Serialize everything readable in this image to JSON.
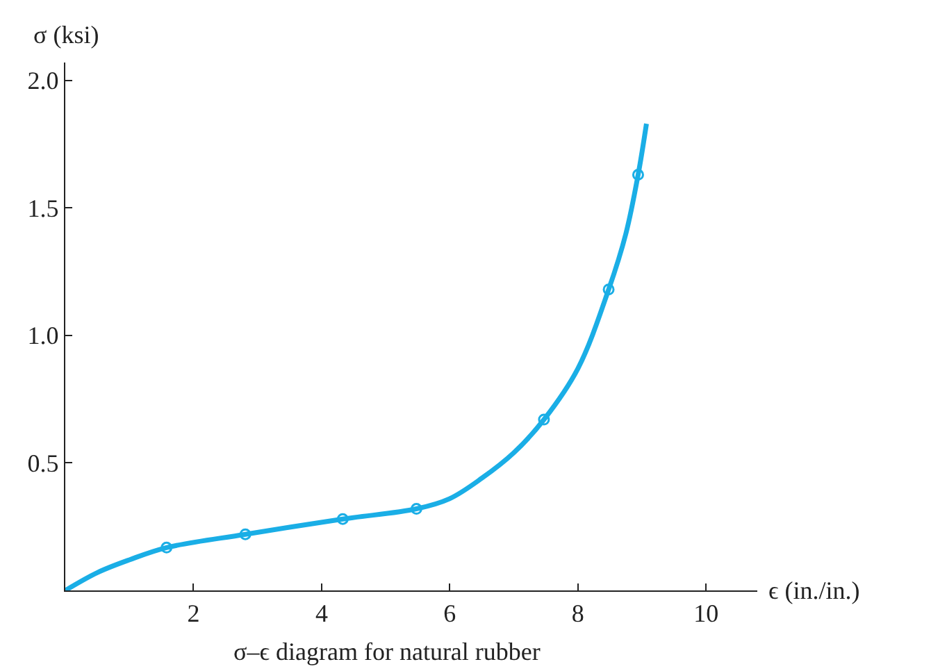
{
  "chart_data": {
    "type": "line",
    "xlabel": "ϵ (in./in.)",
    "ylabel": "σ (ksi)",
    "annotations": [
      "σ–ϵ diagram for natural rubber"
    ],
    "xlim": [
      0,
      10.8
    ],
    "ylim": [
      0,
      2.07
    ],
    "xticks": [
      2,
      4,
      6,
      8,
      10
    ],
    "yticks": [
      0.5,
      {
        "value": 1.0,
        "label": "1.0"
      },
      1.5,
      {
        "value": 2.0,
        "label": "2.0"
      }
    ],
    "series": [
      {
        "color": "#1aaee6",
        "marker": "none",
        "x": [
          0,
          0.5,
          1,
          1.58,
          2.81,
          4.33,
          5.48,
          6,
          6.5,
          7,
          7.47,
          8,
          8.48,
          8.75,
          8.94,
          9.07
        ],
        "values": [
          0,
          0.07,
          0.12,
          0.168,
          0.22,
          0.28,
          0.32,
          0.36,
          0.44,
          0.54,
          0.67,
          0.87,
          1.18,
          1.4,
          1.63,
          1.83
        ]
      },
      {
        "type": "scatter",
        "color": "#1aaee6",
        "marker": "circle",
        "x": [
          1.58,
          2.81,
          4.33,
          5.48,
          7.47,
          8.48,
          8.94
        ],
        "values": [
          0.168,
          0.22,
          0.28,
          0.32,
          0.67,
          1.18,
          1.63
        ]
      }
    ]
  }
}
